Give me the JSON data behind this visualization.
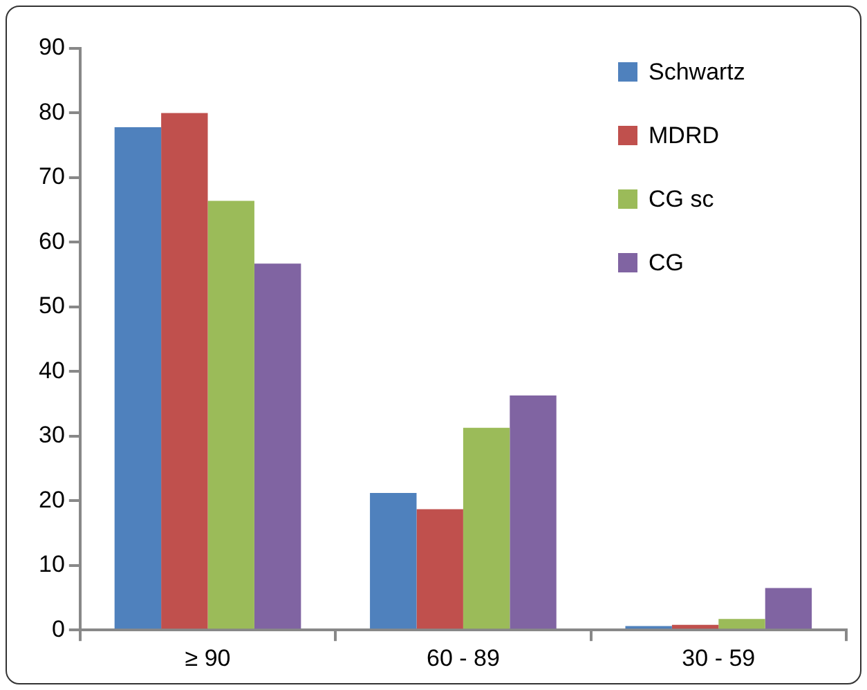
{
  "chart_data": {
    "type": "bar",
    "categories": [
      "≥ 90",
      "60 - 89",
      "30 - 59"
    ],
    "series": [
      {
        "name": "Schwartz",
        "color": "#4f81bd",
        "values": [
          77.8,
          21.2,
          0.6
        ]
      },
      {
        "name": "MDRD",
        "color": "#c0504d",
        "values": [
          80,
          18.7,
          0.8
        ]
      },
      {
        "name": "CG sc",
        "color": "#9bbb59",
        "values": [
          66.4,
          31.3,
          1.7
        ]
      },
      {
        "name": "CG",
        "color": "#8064a2",
        "values": [
          56.7,
          36.3,
          6.5
        ]
      }
    ],
    "ylim": [
      0,
      90
    ],
    "yticks": [
      0,
      10,
      20,
      30,
      40,
      50,
      60,
      70,
      80,
      90
    ],
    "grid": false,
    "legend": "top right"
  }
}
